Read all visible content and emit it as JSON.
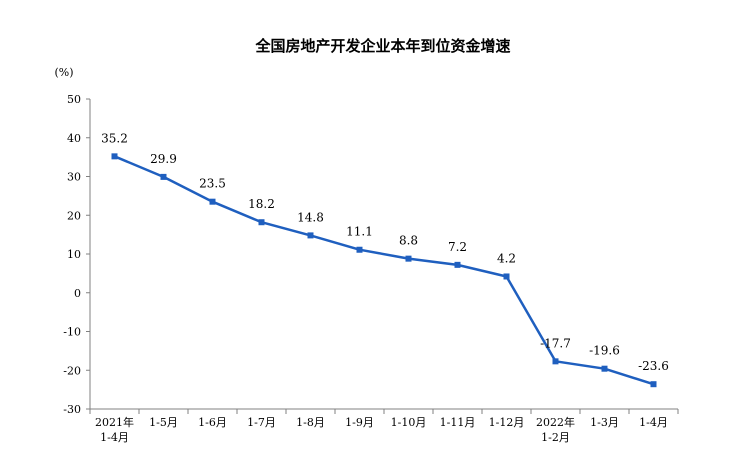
{
  "chart_data": {
    "type": "line",
    "title": "全国房地产开发企业本年到位资金增速",
    "ylabel": "(%)",
    "xlabel": "",
    "ylim": [
      -30,
      50
    ],
    "yticks": [
      "50",
      "40",
      "30",
      "20",
      "10",
      "0",
      "-10",
      "-20",
      "-30"
    ],
    "categories": [
      [
        "2021年",
        "1-4月"
      ],
      [
        "1-5月"
      ],
      [
        "1-6月"
      ],
      [
        "1-7月"
      ],
      [
        "1-8月"
      ],
      [
        "1-9月"
      ],
      [
        "1-10月"
      ],
      [
        "1-11月"
      ],
      [
        "1-12月"
      ],
      [
        "2022年",
        "1-2月"
      ],
      [
        "1-3月"
      ],
      [
        "1-4月"
      ]
    ],
    "values": [
      35.2,
      29.9,
      23.5,
      18.2,
      14.8,
      11.1,
      8.8,
      7.2,
      4.2,
      -17.7,
      -19.6,
      -23.6
    ],
    "data_labels": [
      "35.2",
      "29.9",
      "23.5",
      "18.2",
      "14.8",
      "11.1",
      "8.8",
      "7.2",
      "4.2",
      "-17.7",
      "-19.6",
      "-23.6"
    ],
    "grid": false,
    "legend": "none",
    "line_color": "#1f5fbf",
    "axis_color": "#808080"
  }
}
